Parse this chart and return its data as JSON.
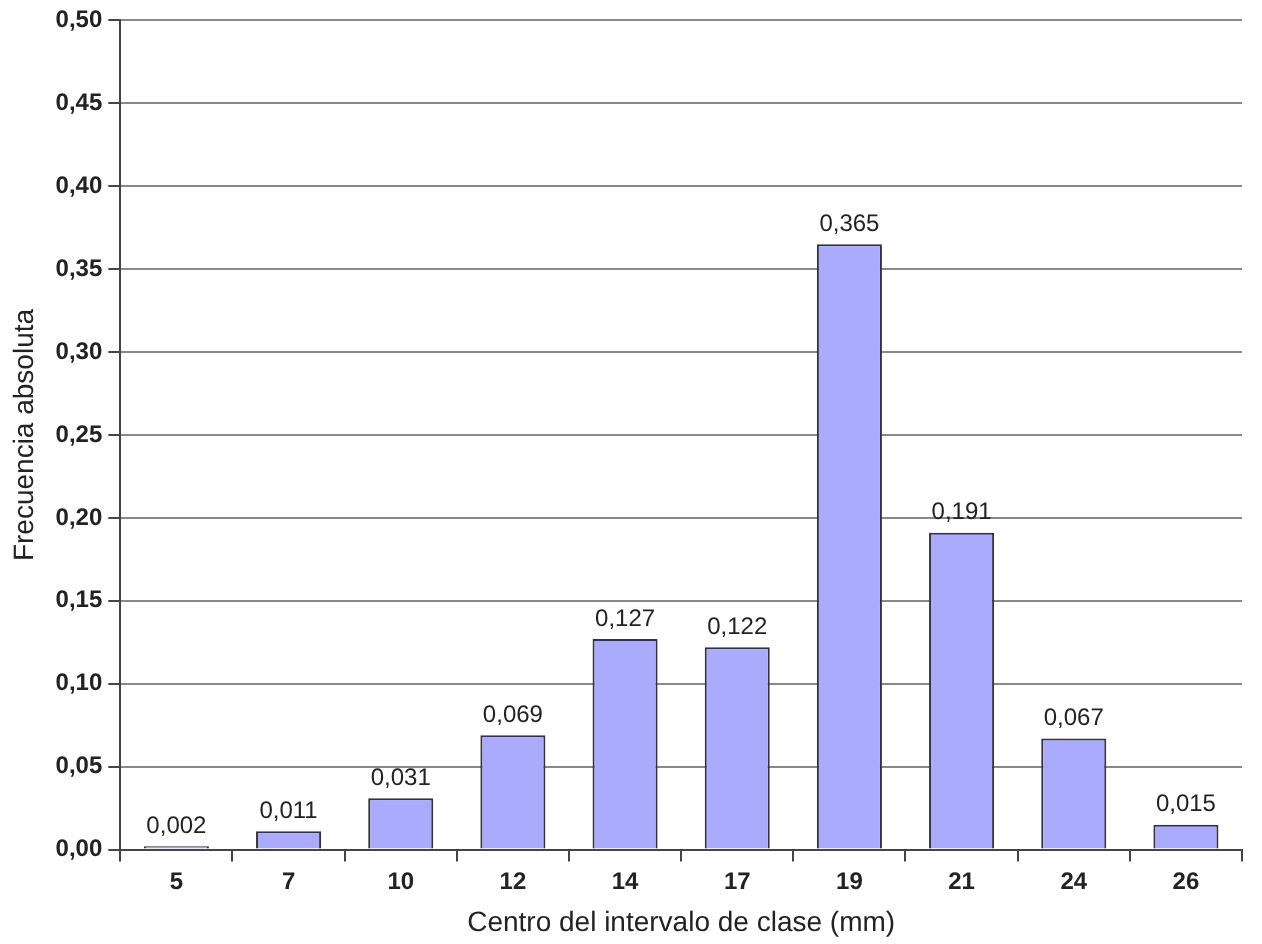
{
  "chart_data": {
    "type": "bar",
    "xlabel": "Centro del intervalo de clase (mm)",
    "ylabel": "Frecuencia absoluta",
    "categories": [
      "5",
      "7",
      "10",
      "12",
      "14",
      "17",
      "19",
      "21",
      "24",
      "26"
    ],
    "values": [
      0.002,
      0.011,
      0.031,
      0.069,
      0.127,
      0.122,
      0.365,
      0.191,
      0.067,
      0.015
    ],
    "value_labels": [
      "0,002",
      "0,011",
      "0,031",
      "0,069",
      "0,127",
      "0,122",
      "0,365",
      "0,191",
      "0,067",
      "0,015"
    ],
    "color": "#aaaaff",
    "ylim": [
      0,
      0.5
    ],
    "yticks": [
      {
        "value": 0,
        "label": "0,00"
      },
      {
        "value": 0.05,
        "label": "0,05"
      },
      {
        "value": 0.1,
        "label": "0,10"
      },
      {
        "value": 0.15,
        "label": "0,15"
      },
      {
        "value": 0.2,
        "label": "0,20"
      },
      {
        "value": 0.25,
        "label": "0,25"
      },
      {
        "value": 0.3,
        "label": "0,30"
      },
      {
        "value": 0.35,
        "label": "0,35"
      },
      {
        "value": 0.4,
        "label": "0,40"
      },
      {
        "value": 0.45,
        "label": "0,45"
      },
      {
        "value": 0.5,
        "label": "0,50"
      }
    ],
    "grid": "y",
    "legend": false
  }
}
